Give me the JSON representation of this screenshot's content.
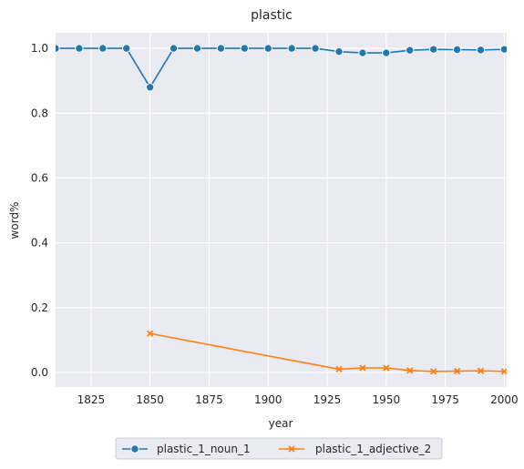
{
  "chart_data": {
    "type": "line",
    "title": "plastic",
    "xlabel": "year",
    "ylabel": "word%",
    "xlim": [
      1810,
      2001
    ],
    "ylim": [
      -0.045,
      1.048
    ],
    "xticks": [
      1825,
      1850,
      1875,
      1900,
      1925,
      1950,
      1975,
      2000
    ],
    "yticks": [
      0.0,
      0.2,
      0.4,
      0.6,
      0.8,
      1.0
    ],
    "xtick_labels": [
      "1825",
      "1850",
      "1875",
      "1900",
      "1925",
      "1950",
      "1975",
      "2000"
    ],
    "ytick_labels": [
      "0.0",
      "0.2",
      "0.4",
      "0.6",
      "0.8",
      "1.0"
    ],
    "grid": true,
    "legend_position": "bottom-center",
    "series": [
      {
        "name": "plastic_1_noun_1",
        "color": "#1f77b4",
        "marker": "circle",
        "x": [
          1810,
          1820,
          1830,
          1840,
          1850,
          1860,
          1870,
          1880,
          1890,
          1900,
          1910,
          1920,
          1930,
          1940,
          1950,
          1960,
          1970,
          1980,
          1990,
          2000
        ],
        "y": [
          1.0,
          1.0,
          1.0,
          1.0,
          0.88,
          1.0,
          1.0,
          1.0,
          1.0,
          1.0,
          1.0,
          1.0,
          0.99,
          0.986,
          0.986,
          0.994,
          0.997,
          0.996,
          0.995,
          0.997
        ]
      },
      {
        "name": "plastic_1_adjective_2",
        "color": "#ff7f0e",
        "marker": "x",
        "x": [
          1850,
          1930,
          1940,
          1950,
          1960,
          1970,
          1980,
          1990,
          2000
        ],
        "y": [
          0.12,
          0.01,
          0.014,
          0.014,
          0.006,
          0.003,
          0.004,
          0.005,
          0.003
        ]
      }
    ]
  }
}
